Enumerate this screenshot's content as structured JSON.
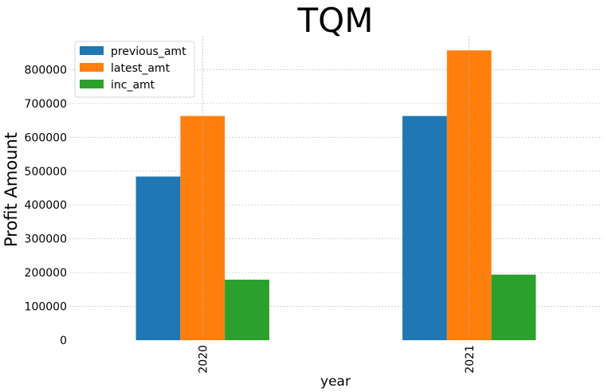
{
  "chart_data": {
    "type": "bar",
    "title": "TQM",
    "xlabel": "year",
    "ylabel": "Profit Amount",
    "categories": [
      "2020",
      "2021"
    ],
    "series": [
      {
        "name": "previous_amt",
        "color": "#1f77b4",
        "values": [
          484000,
          663000
        ]
      },
      {
        "name": "latest_amt",
        "color": "#ff7f0e",
        "values": [
          663000,
          857000
        ]
      },
      {
        "name": "inc_amt",
        "color": "#2ca02c",
        "values": [
          179000,
          194000
        ]
      }
    ],
    "ylim": [
      0,
      900000
    ],
    "yticks": [
      0,
      100000,
      200000,
      300000,
      400000,
      500000,
      600000,
      700000,
      800000
    ],
    "ytick_labels": [
      "0",
      "100000",
      "200000",
      "300000",
      "400000",
      "500000",
      "600000",
      "700000",
      "800000"
    ],
    "grid": true,
    "legend_position": "upper-left"
  }
}
